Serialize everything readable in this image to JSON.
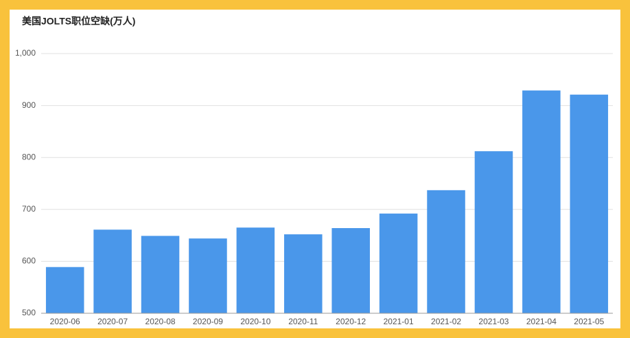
{
  "chart_data": {
    "type": "bar",
    "title": "美国JOLTS职位空缺(万人)",
    "categories": [
      "2020-06",
      "2020-07",
      "2020-08",
      "2020-09",
      "2020-10",
      "2020-11",
      "2020-12",
      "2021-01",
      "2021-02",
      "2021-03",
      "2021-04",
      "2021-05"
    ],
    "values": [
      589,
      661,
      649,
      644,
      665,
      652,
      664,
      692,
      737,
      812,
      929,
      921
    ],
    "color": "#4a97ea",
    "ylim": [
      500,
      1000
    ],
    "yticks": [
      500,
      600,
      700,
      800,
      900,
      {
        "value": 1000,
        "label": "1,000"
      }
    ],
    "grid": true
  }
}
